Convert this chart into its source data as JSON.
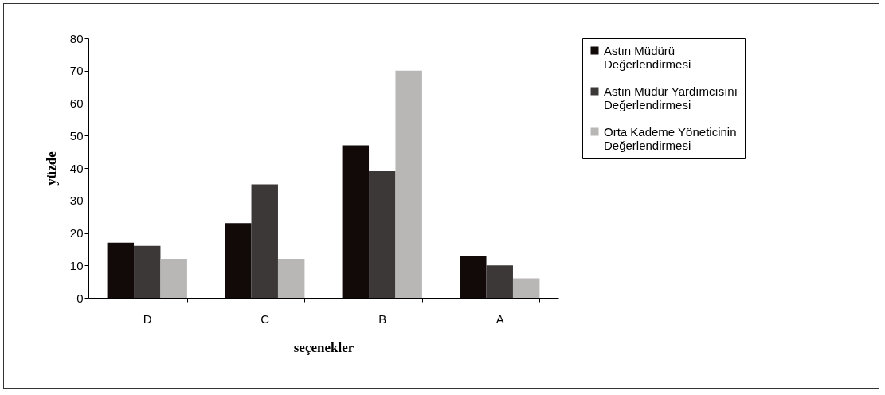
{
  "chart_data": {
    "type": "bar",
    "xlabel": "seçenekler",
    "ylabel": "yüzde",
    "categories": [
      "D",
      "C",
      "B",
      "A"
    ],
    "series": [
      {
        "name": "Astın Müdürü Değerlendirmesi",
        "color": "#120909",
        "values": [
          17,
          23,
          47,
          13
        ]
      },
      {
        "name": "Astın Müdür Yardımcısını Değerlendirmesi",
        "color": "#3d3838",
        "values": [
          16,
          35,
          39,
          10
        ]
      },
      {
        "name": "Orta Kademe Yöneticinin Değerlendirmesi",
        "color": "#b9b6b6",
        "values": [
          12,
          12,
          70,
          6
        ]
      }
    ],
    "ylim": [
      0,
      80
    ],
    "yticks": [
      0,
      10,
      20,
      30,
      40,
      50,
      60,
      70,
      80
    ],
    "grid": false,
    "legend": "right"
  }
}
